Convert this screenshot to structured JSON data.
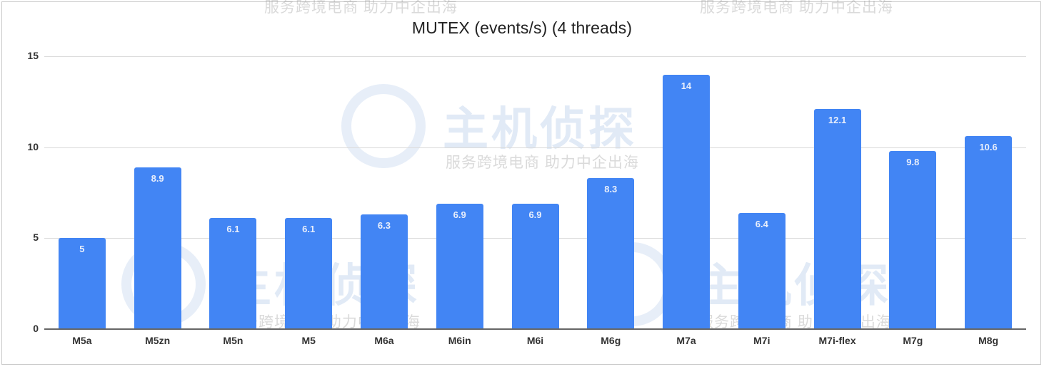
{
  "chart_data": {
    "type": "bar",
    "title": "MUTEX (events/s) (4 threads)",
    "xlabel": "",
    "ylabel": "",
    "categories": [
      "M5a",
      "M5zn",
      "M5n",
      "M5",
      "M6a",
      "M6in",
      "M6i",
      "M6g",
      "M7a",
      "M7i",
      "M7i-flex",
      "M7g",
      "M8g"
    ],
    "values": [
      5,
      8.9,
      6.1,
      6.1,
      6.3,
      6.9,
      6.9,
      8.3,
      14,
      6.4,
      12.1,
      9.8,
      10.6
    ],
    "data_labels": [
      "5",
      "8.9",
      "6.1",
      "6.1",
      "6.3",
      "6.9",
      "6.9",
      "8.3",
      "14",
      "6.4",
      "12.1",
      "9.8",
      "10.6"
    ],
    "ylim": [
      0,
      15
    ],
    "yticks": [
      "0",
      "5",
      "10",
      "15"
    ],
    "grid": true,
    "legend": "none",
    "bar_color": "#4285f4"
  },
  "watermark": {
    "brand": "主机侦探",
    "slogan": "服务跨境电商 助力中企出海"
  }
}
